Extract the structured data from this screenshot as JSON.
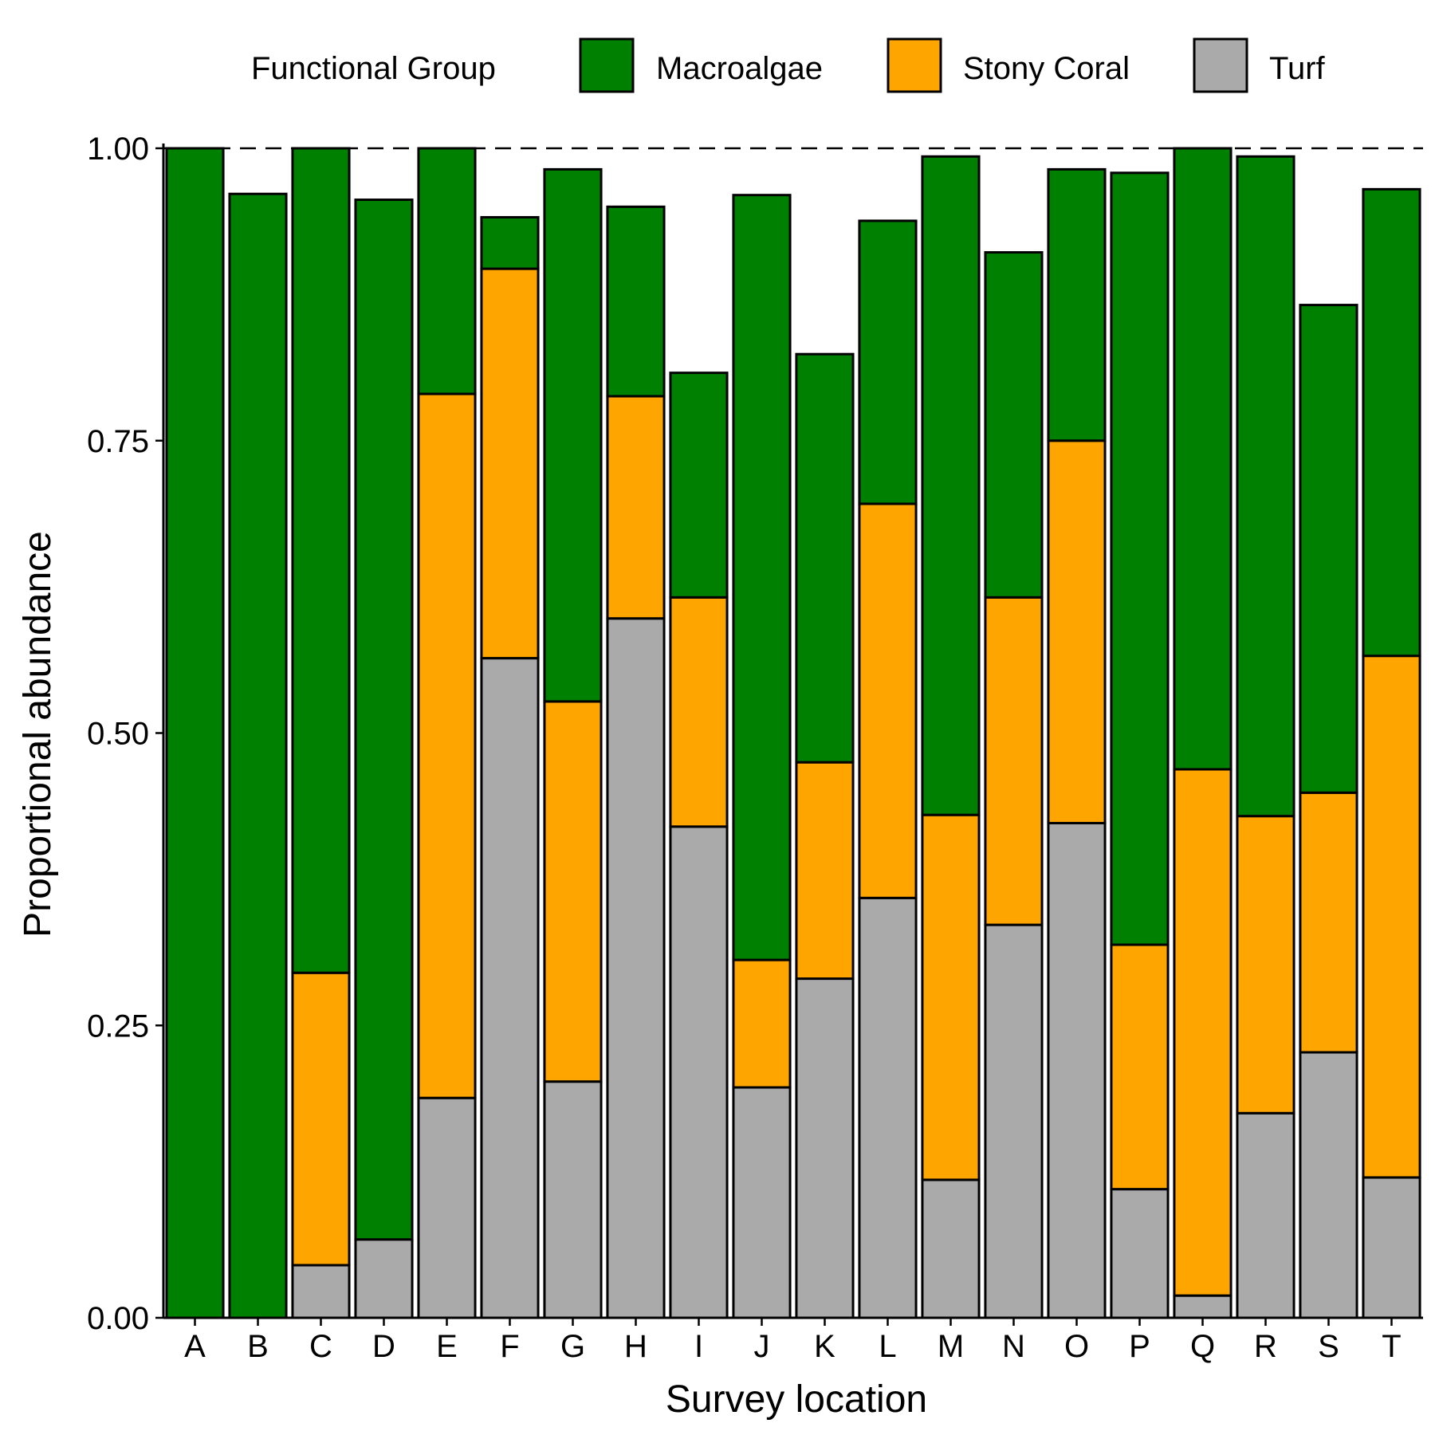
{
  "chart_data": {
    "type": "bar",
    "stacked": true,
    "xlabel": "Survey location",
    "ylabel": "Proportional abundance",
    "ylim": [
      0,
      1
    ],
    "yticks": [
      "0.00",
      "0.25",
      "0.50",
      "0.75",
      "1.00"
    ],
    "reference_line": {
      "y": 1.0,
      "style": "dashed"
    },
    "legend": {
      "title": "Functional Group",
      "position": "top",
      "items": [
        "Macroalgae",
        "Stony Coral",
        "Turf"
      ]
    },
    "categories": [
      "A",
      "B",
      "C",
      "D",
      "E",
      "F",
      "G",
      "H",
      "I",
      "J",
      "K",
      "L",
      "M",
      "N",
      "O",
      "P",
      "Q",
      "R",
      "S",
      "T"
    ],
    "series": [
      {
        "name": "Turf",
        "color": "#aaaaaa",
        "values": [
          0.0,
          0.0,
          0.045,
          0.067,
          0.188,
          0.564,
          0.202,
          0.598,
          0.42,
          0.197,
          0.29,
          0.359,
          0.118,
          0.336,
          0.423,
          0.11,
          0.019,
          0.175,
          0.227,
          0.12
        ]
      },
      {
        "name": "Stony Coral",
        "color": "#ffa500",
        "values": [
          0.0,
          0.0,
          0.25,
          0.0,
          0.602,
          0.333,
          0.325,
          0.19,
          0.196,
          0.109,
          0.185,
          0.337,
          0.312,
          0.28,
          0.327,
          0.209,
          0.45,
          0.254,
          0.222,
          0.446
        ]
      },
      {
        "name": "Macroalgae",
        "color": "#008000",
        "values": [
          1.0,
          0.961,
          0.705,
          0.889,
          0.21,
          0.044,
          0.455,
          0.162,
          0.192,
          0.654,
          0.349,
          0.242,
          0.563,
          0.295,
          0.232,
          0.66,
          0.531,
          0.564,
          0.417,
          0.399
        ]
      }
    ]
  }
}
